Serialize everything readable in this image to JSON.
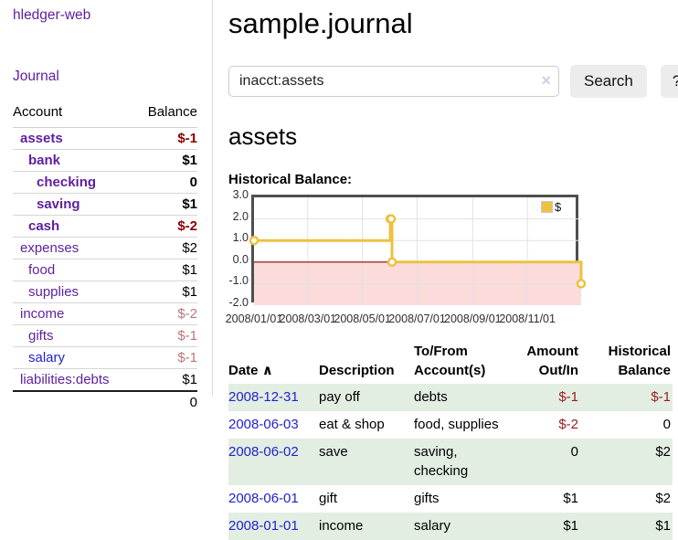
{
  "colors": {
    "link_purple": "#5e1f9e",
    "link_blue": "#2222cc",
    "negative_strong": "#8b0000",
    "negative_faint": "#b97878",
    "register_negative": "#9b1c1c",
    "row_green": "#e3eee3",
    "chart_line": "#edc240"
  },
  "sidebar": {
    "brand": "hledger-web",
    "nav_journal": "Journal",
    "col_account": "Account",
    "col_balance": "Balance",
    "accounts": [
      {
        "name": "assets",
        "balance": "$-1",
        "level": 1,
        "current": true,
        "balance_class": "neg"
      },
      {
        "name": "bank",
        "balance": "$1",
        "level": 2,
        "current": true,
        "balance_class": ""
      },
      {
        "name": "checking",
        "balance": "0",
        "level": 3,
        "current": true,
        "balance_class": ""
      },
      {
        "name": "saving",
        "balance": "$1",
        "level": 3,
        "current": true,
        "balance_class": ""
      },
      {
        "name": "cash",
        "balance": "$-2",
        "level": 2,
        "current": true,
        "balance_class": "neg"
      },
      {
        "name": "expenses",
        "balance": "$2",
        "level": 1,
        "current": false,
        "balance_class": ""
      },
      {
        "name": "food",
        "balance": "$1",
        "level": 2,
        "current": false,
        "balance_class": ""
      },
      {
        "name": "supplies",
        "balance": "$1",
        "level": 2,
        "current": false,
        "balance_class": ""
      },
      {
        "name": "income",
        "balance": "$-2",
        "level": 1,
        "current": false,
        "balance_class": "neg-faint"
      },
      {
        "name": "gifts",
        "balance": "$-1",
        "level": 2,
        "current": false,
        "balance_class": "neg-faint"
      },
      {
        "name": "salary",
        "balance": "$-1",
        "level": 2,
        "current": false,
        "balance_class": "neg-faint",
        "link_style": "blue"
      },
      {
        "name": "liabilities:debts",
        "balance": "$1",
        "level": 1,
        "current": false,
        "balance_class": ""
      }
    ],
    "total": "0"
  },
  "main": {
    "title": "sample.journal",
    "search": {
      "value": "inacct:assets",
      "clear_icon": "×",
      "search_button": "Search",
      "help_button": "?"
    },
    "account_heading": "assets",
    "section_label": "Historical Balance:"
  },
  "chart_data": {
    "type": "line",
    "title": "Historical Balance:",
    "step": "after",
    "series": [
      {
        "name": "$",
        "color": "#edc240",
        "points": [
          [
            "2008-01-01",
            1
          ],
          [
            "2008-06-01",
            2
          ],
          [
            "2008-06-02",
            2
          ],
          [
            "2008-06-03",
            0
          ],
          [
            "2008-12-31",
            -1
          ]
        ]
      }
    ],
    "ylim": [
      -2,
      3
    ],
    "ytick_labels": [
      "3.0",
      "2.0",
      "1.0",
      "0.0",
      "-1.0",
      "-2.0"
    ],
    "xrange": [
      "2008-01-01",
      "2008-12-31"
    ],
    "xtick_labels": [
      "2008/01/01",
      "2008/03/01",
      "2008/05/01",
      "2008/07/01",
      "2008/09/01",
      "2008/11/01"
    ],
    "legend": {
      "position": "top-right",
      "label": "$"
    },
    "grid": true,
    "gridline_color": "#e2e2e2",
    "negative_region_color": "#fcdbdb",
    "zero_line_color": "#8b0000"
  },
  "register": {
    "headers": {
      "date": "Date",
      "sort_indicator": "∧",
      "description": "Description",
      "accounts": "To/From Account(s)",
      "amount": "Amount Out/In",
      "balance": "Historical Balance"
    },
    "rows": [
      {
        "date": "2008-12-31",
        "description": "pay off",
        "accounts": "debts",
        "amount": "$-1",
        "balance": "$-1",
        "amount_neg": true,
        "balance_neg": true
      },
      {
        "date": "2008-06-03",
        "description": "eat & shop",
        "accounts": "food, supplies",
        "amount": "$-2",
        "balance": "0",
        "amount_neg": true,
        "balance_neg": false
      },
      {
        "date": "2008-06-02",
        "description": "save",
        "accounts": "saving, checking",
        "amount": "0",
        "balance": "$2",
        "amount_neg": false,
        "balance_neg": false
      },
      {
        "date": "2008-06-01",
        "description": "gift",
        "accounts": "gifts",
        "amount": "$1",
        "balance": "$2",
        "amount_neg": false,
        "balance_neg": false
      },
      {
        "date": "2008-01-01",
        "description": "income",
        "accounts": "salary",
        "amount": "$1",
        "balance": "$1",
        "amount_neg": false,
        "balance_neg": false
      }
    ]
  }
}
